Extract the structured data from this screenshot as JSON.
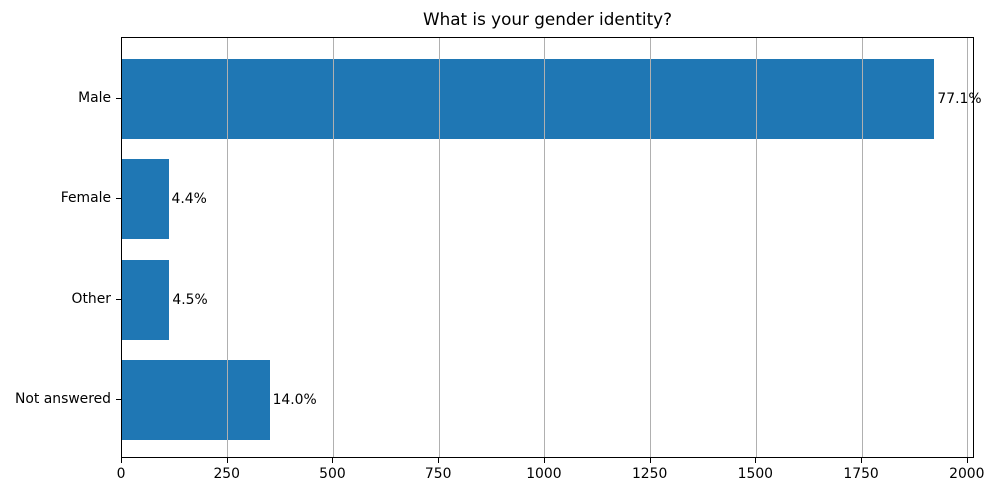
{
  "chart_data": {
    "type": "bar",
    "orientation": "horizontal",
    "title": "What is your gender identity?",
    "categories": [
      "Male",
      "Female",
      "Other",
      "Not answered"
    ],
    "values": [
      1921,
      110,
      112,
      349
    ],
    "bar_labels": [
      "77.1%",
      "4.4%",
      "4.5%",
      "14.0%"
    ],
    "x_ticks": [
      "0",
      "250",
      "500",
      "750",
      "1000",
      "1250",
      "1500",
      "1750",
      "2000"
    ],
    "x_tick_values": [
      0,
      250,
      500,
      750,
      1000,
      1250,
      1500,
      1750,
      2000
    ],
    "xlim": [
      0,
      2017
    ],
    "grid": true,
    "grid_position": "above-bars",
    "legend": "none",
    "xlabel": "",
    "ylabel": "",
    "colors": {
      "bar": "#1f77b4",
      "grid": "#b0b0b0",
      "spine": "#000000",
      "text": "#000000",
      "background": "#ffffff"
    }
  }
}
